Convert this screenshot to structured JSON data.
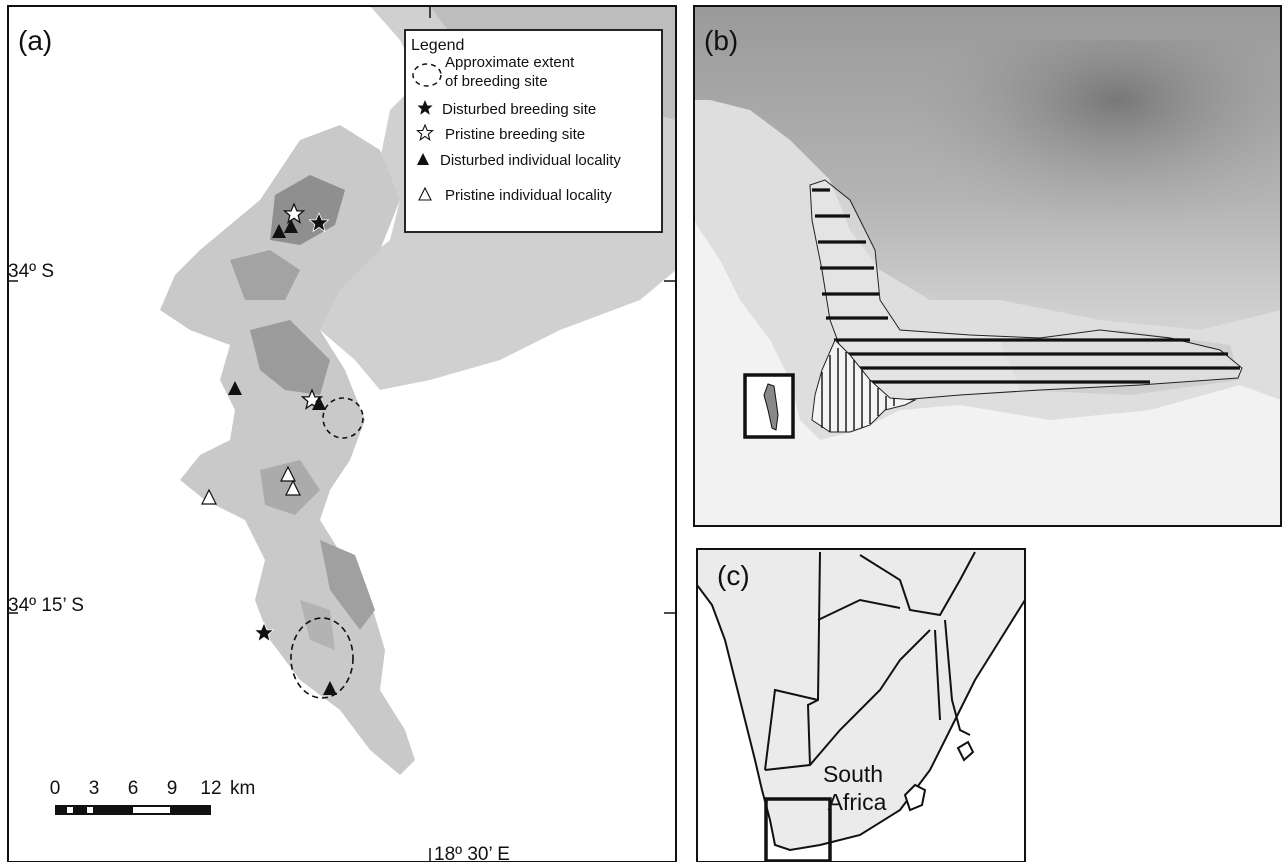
{
  "panel_a": {
    "label": "(a)",
    "legend": {
      "title": "Legend",
      "items": [
        {
          "symbol": "dashed-ellipse",
          "text_line1": "Approximate extent",
          "text_line2": "of breeding site"
        },
        {
          "symbol": "filled-star",
          "text": "Disturbed breeding site"
        },
        {
          "symbol": "open-star",
          "text": "Pristine breeding site"
        },
        {
          "symbol": "filled-triangle",
          "text": "Disturbed individual locality"
        },
        {
          "symbol": "open-triangle",
          "text": "Pristine individual locality"
        }
      ]
    },
    "lat_labels": [
      "34º  S",
      "34º 15’ S"
    ],
    "lon_label": "18º 30’ E",
    "scale_bar": {
      "ticks": [
        "0",
        "3",
        "6",
        "9",
        "12"
      ],
      "unit": "km"
    }
  },
  "panel_b": {
    "label": "(b)"
  },
  "panel_c": {
    "label": "(c)",
    "country_line1": "South",
    "country_line2": "Africa"
  },
  "colors": {
    "frame": "#111111",
    "sea": "#ffffff",
    "land_light": "#d6d6d6",
    "land_dark": "#8a8a8a",
    "countries": "#ebebeb"
  }
}
